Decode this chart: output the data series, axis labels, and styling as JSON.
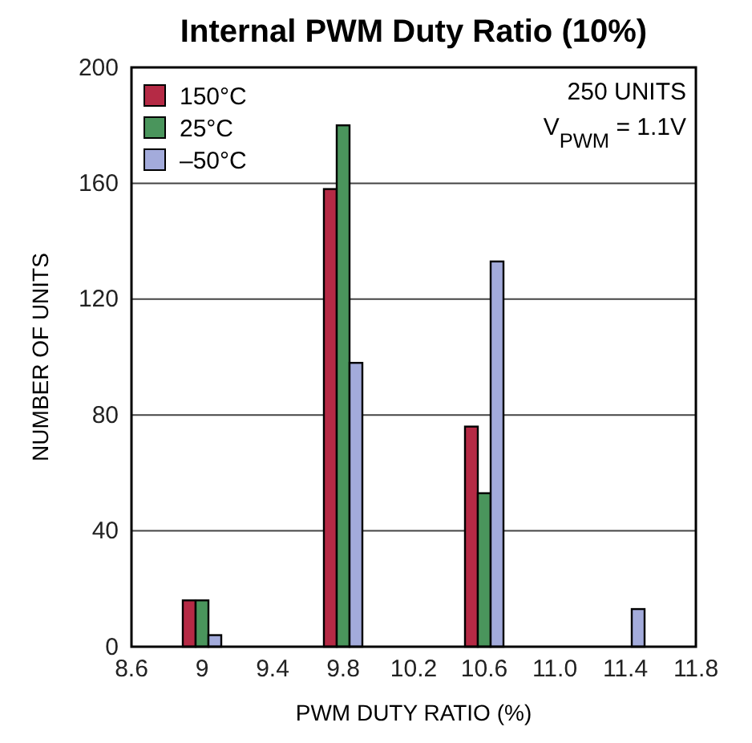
{
  "chart_data": {
    "type": "bar",
    "title": "Internal PWM Duty Ratio (10%)",
    "xlabel": "PWM DUTY RATIO (%)",
    "ylabel": "NUMBER OF UNITS",
    "x": [
      9,
      9.8,
      10.6,
      11.4
    ],
    "series": [
      {
        "name": "150°C",
        "color": "#b52a45",
        "values": [
          16,
          158,
          76,
          0
        ]
      },
      {
        "name": "25°C",
        "color": "#4a955c",
        "values": [
          16,
          180,
          53,
          0
        ]
      },
      {
        "name": "–50°C",
        "color": "#a3abdb",
        "values": [
          4,
          98,
          133,
          13
        ]
      }
    ],
    "xlim": [
      8.6,
      11.8
    ],
    "xticks": [
      8.6,
      9,
      9.4,
      9.8,
      10.2,
      10.6,
      {
        "value": 11,
        "label": "11.0"
      },
      11.4,
      11.8
    ],
    "ylim": [
      0,
      200
    ],
    "yticks": [
      0,
      40,
      80,
      120,
      160,
      200
    ],
    "grid": "y",
    "legend": "top left",
    "annotations": [
      "250 UNITS",
      "V$_{PWM}$ = 1.1V"
    ]
  }
}
